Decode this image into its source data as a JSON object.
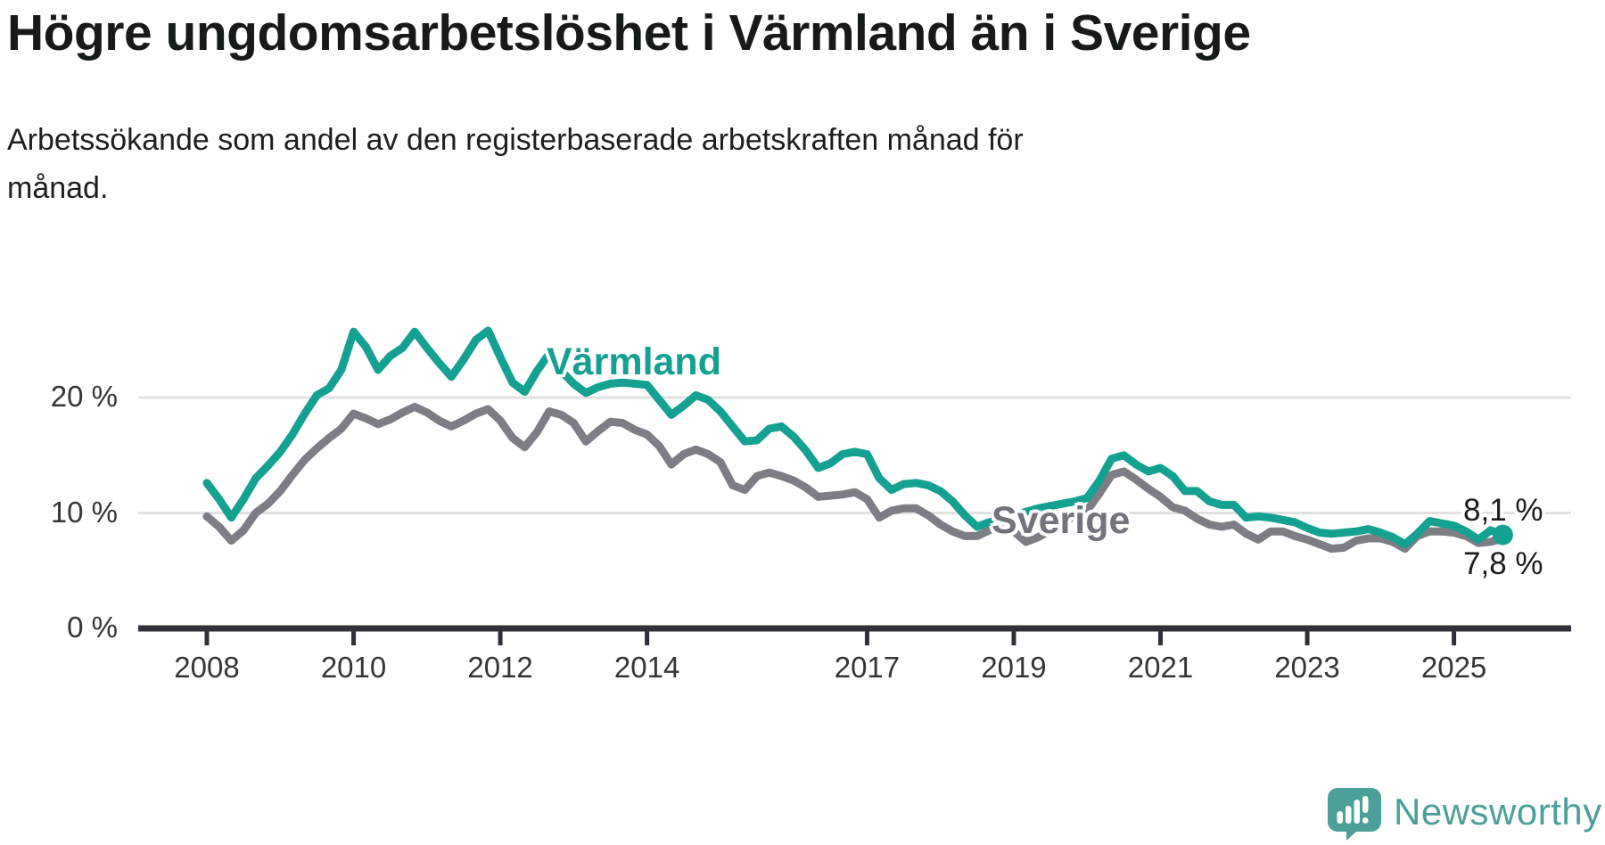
{
  "title": "Högre ungdomsarbetslöshet i Värmland än i Sverige",
  "subtitle_lines": [
    "Arbetssökande som andel av den registerbaserade arbetskraften månad för",
    "månad."
  ],
  "colors": {
    "varmland": "#14a191",
    "sverige": "#7d7d85",
    "grid": "#e1e1e1",
    "axis": "#30303a",
    "tick_text": "#353535",
    "logo": "#4ba099"
  },
  "chart_data": {
    "type": "line",
    "title": "Högre ungdomsarbetslöshet i Värmland än i Sverige",
    "subtitle": "Arbetssökande som andel av den registerbaserade arbetskraften månad för månad.",
    "unit": "%",
    "x_start": "2008-01",
    "x_step_months": 2,
    "x_end": "2025-09",
    "x_ticks": [
      "2008",
      "2010",
      "2012",
      "2014",
      "2017",
      "2019",
      "2021",
      "2023",
      "2025"
    ],
    "y_ticks": [
      {
        "value": 0,
        "label": "0 %"
      },
      {
        "value": 10,
        "label": "10 %"
      },
      {
        "value": 20,
        "label": "20 %"
      }
    ],
    "ylim": [
      0,
      27.5
    ],
    "grid": "horizontal-only",
    "legend": "inline-labels",
    "series": [
      {
        "name": "Sverige",
        "color": "#7d7d85",
        "end_label": "7,8 %",
        "end_value": 7.8,
        "values": [
          9.7,
          8.8,
          7.6,
          8.5,
          10.0,
          10.8,
          11.9,
          13.3,
          14.6,
          15.6,
          16.5,
          17.3,
          18.6,
          18.2,
          17.7,
          18.1,
          18.7,
          19.2,
          18.7,
          18.0,
          17.5,
          18.0,
          18.6,
          19.0,
          18.0,
          16.5,
          15.7,
          17.0,
          18.8,
          18.5,
          17.8,
          16.2,
          17.1,
          17.9,
          17.8,
          17.2,
          16.8,
          15.8,
          14.2,
          15.1,
          15.5,
          15.1,
          14.4,
          12.4,
          12.0,
          13.2,
          13.5,
          13.2,
          12.8,
          12.2,
          11.4,
          11.5,
          11.6,
          11.8,
          11.2,
          9.6,
          10.2,
          10.4,
          10.4,
          9.8,
          9.0,
          8.4,
          8.0,
          8.0,
          8.5,
          8.9,
          8.4,
          7.5,
          7.9,
          8.5,
          9.1,
          9.8,
          10.2,
          11.7,
          13.3,
          13.6,
          12.9,
          12.1,
          11.4,
          10.5,
          10.2,
          9.5,
          9.0,
          8.8,
          9.0,
          8.2,
          7.7,
          8.4,
          8.4,
          8.0,
          7.7,
          7.3,
          6.9,
          7.0,
          7.6,
          7.8,
          7.8,
          7.5,
          6.9,
          8.0,
          8.4,
          8.4,
          8.3,
          8.0,
          7.4,
          7.5,
          7.8
        ]
      },
      {
        "name": "Värmland",
        "color": "#14a191",
        "end_label": "8,1 %",
        "end_value": 8.1,
        "end_dot": true,
        "values": [
          12.6,
          11.2,
          9.6,
          11.2,
          13.0,
          14.1,
          15.3,
          16.8,
          18.6,
          20.2,
          20.8,
          22.4,
          25.7,
          24.4,
          22.4,
          23.6,
          24.3,
          25.7,
          24.3,
          23.0,
          21.8,
          23.3,
          25.0,
          25.8,
          23.5,
          21.3,
          20.5,
          22.3,
          23.8,
          22.3,
          21.2,
          20.4,
          20.9,
          21.2,
          21.3,
          21.2,
          21.1,
          19.8,
          18.5,
          19.3,
          20.2,
          19.8,
          18.8,
          17.5,
          16.2,
          16.3,
          17.3,
          17.5,
          16.6,
          15.4,
          13.9,
          14.3,
          15.1,
          15.3,
          15.1,
          13.0,
          12.0,
          12.5,
          12.6,
          12.4,
          11.9,
          11.0,
          9.8,
          8.8,
          9.2,
          9.5,
          9.8,
          10.1,
          10.4,
          10.6,
          10.8,
          11.0,
          11.3,
          12.8,
          14.7,
          15.0,
          14.2,
          13.6,
          13.9,
          13.2,
          11.9,
          11.9,
          11.0,
          10.7,
          10.7,
          9.6,
          9.7,
          9.6,
          9.4,
          9.2,
          8.7,
          8.3,
          8.2,
          8.3,
          8.4,
          8.6,
          8.3,
          7.9,
          7.3,
          8.2,
          9.3,
          9.1,
          8.9,
          8.4,
          7.7,
          8.5,
          8.1
        ]
      }
    ]
  },
  "logo": {
    "text": "Newsworthy"
  }
}
